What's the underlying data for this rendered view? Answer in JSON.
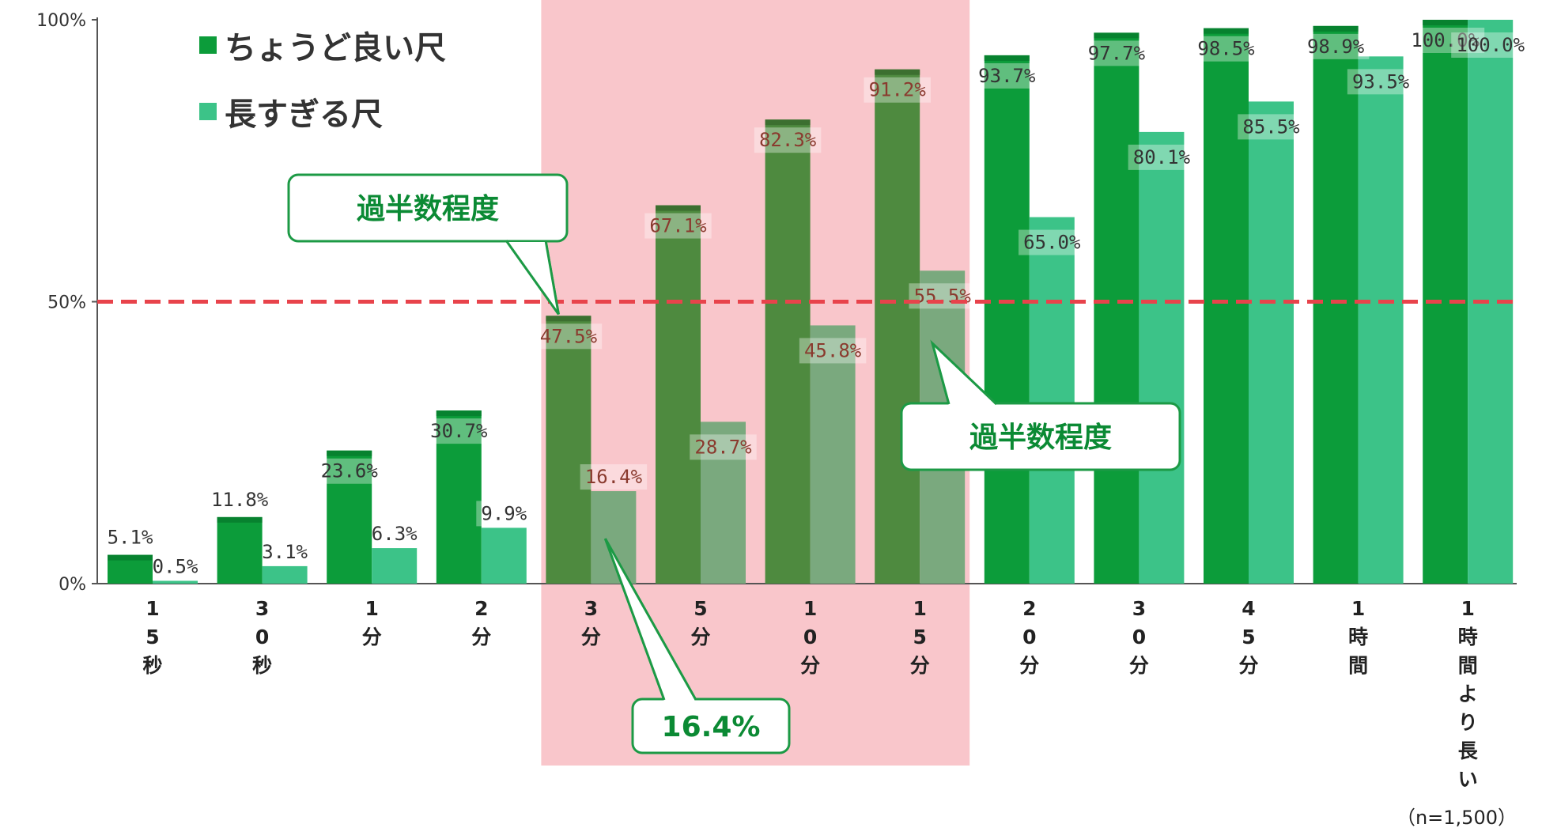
{
  "chart_data": {
    "type": "bar",
    "categories": [
      [
        "1",
        "5",
        "秒"
      ],
      [
        "3",
        "0",
        "秒"
      ],
      [
        "1",
        "分"
      ],
      [
        "2",
        "分"
      ],
      [
        "3",
        "分"
      ],
      [
        "5",
        "分"
      ],
      [
        "1",
        "0",
        "分"
      ],
      [
        "1",
        "5",
        "分"
      ],
      [
        "2",
        "0",
        "分"
      ],
      [
        "3",
        "0",
        "分"
      ],
      [
        "4",
        "5",
        "分"
      ],
      [
        "1",
        "時",
        "間"
      ],
      [
        "1",
        "時",
        "間",
        "よ",
        "り",
        "長",
        "い"
      ]
    ],
    "series": [
      {
        "name": "ちょうど良い尺",
        "values": [
          5.1,
          11.8,
          23.6,
          30.7,
          47.5,
          67.1,
          82.3,
          91.2,
          93.7,
          97.7,
          98.5,
          98.9,
          100.0
        ],
        "labels": [
          "5.1%",
          "11.8%",
          "23.6%",
          "30.7%",
          "47.5%",
          "67.1%",
          "82.3%",
          "91.2%",
          "93.7%",
          "97.7%",
          "98.5%",
          "98.9%",
          "100.0%"
        ],
        "color": "#0c9c3a",
        "shaded_color": "#4e8a3f"
      },
      {
        "name": "長すぎる尺",
        "values": [
          0.5,
          3.1,
          6.3,
          9.9,
          16.4,
          28.7,
          45.8,
          55.5,
          65.0,
          80.1,
          85.5,
          93.5,
          100.0
        ],
        "labels": [
          "0.5%",
          "3.1%",
          "6.3%",
          "9.9%",
          "16.4%",
          "28.7%",
          "45.8%",
          "55.5%",
          "65.0%",
          "80.1%",
          "85.5%",
          "93.5%",
          "100.0%"
        ],
        "color": "#3cc388",
        "shaded_color": "#7aa97e"
      }
    ],
    "ylim": [
      0,
      100
    ],
    "yticks": [
      0,
      50,
      100
    ],
    "ytick_labels": [
      "0%",
      "50%",
      "100%"
    ],
    "reference_line": {
      "value": 50,
      "color": "#e8434b",
      "style": "dashed"
    },
    "highlight_band": {
      "from_index": 4,
      "to_index": 7,
      "color": "#f9c6cb"
    },
    "legend_position": "top-left",
    "annotations": [
      {
        "text": "過半数程度",
        "points_to": "series0-index4"
      },
      {
        "text": "過半数程度",
        "points_to": "series1-index7"
      },
      {
        "text": "16.4%",
        "points_to": "series1-index4"
      }
    ],
    "note": "（n=1,500）"
  }
}
